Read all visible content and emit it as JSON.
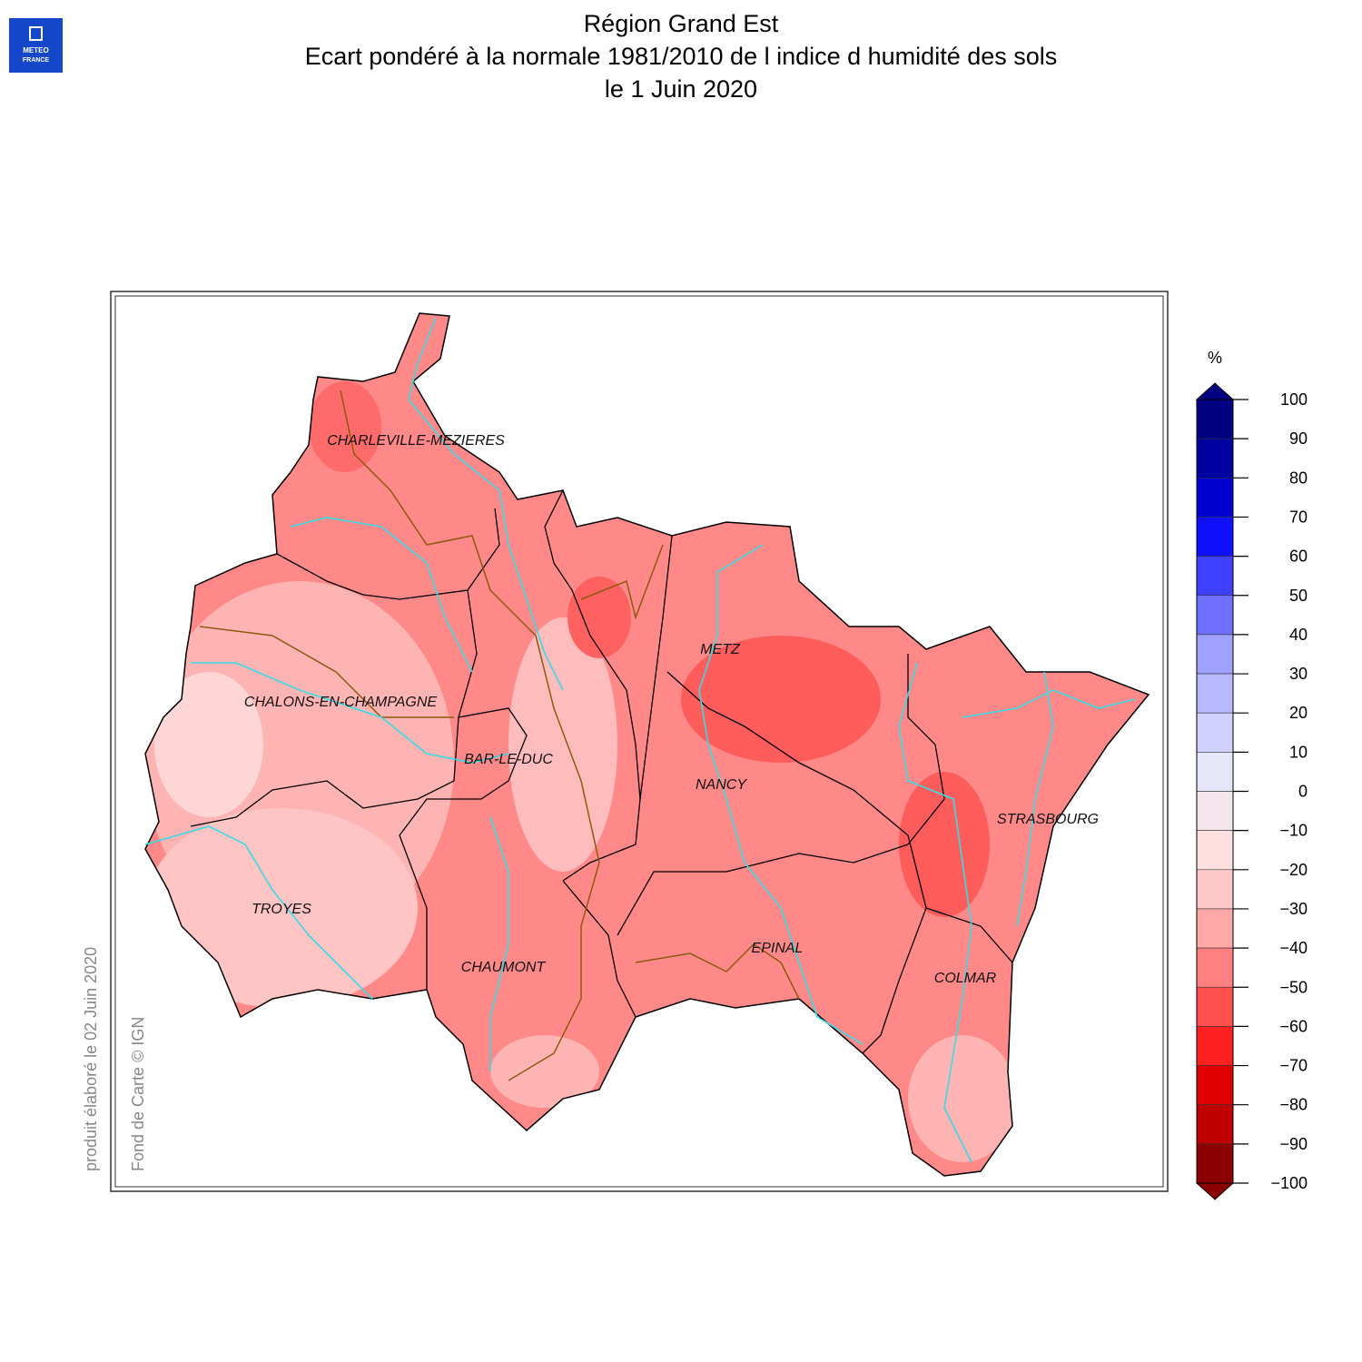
{
  "header": {
    "logo": [
      "METEO",
      "FRANCE"
    ],
    "title": [
      "Région Grand Est",
      "Ecart pondéré à la normale 1981/2010 de l indice d humidité des sols",
      "le 1 Juin 2020"
    ]
  },
  "map": {
    "cities": [
      "CHARLEVILLE-MEZIERES",
      "METZ",
      "CHALONS-EN-CHAMPAGNE",
      "BAR-LE-DUC",
      "NANCY",
      "STRASBOURG",
      "TROYES",
      "EPINAL",
      "CHAUMONT",
      "COLMAR"
    ]
  },
  "legend": {
    "unit": "%",
    "ticks": [
      100,
      90,
      80,
      70,
      60,
      50,
      40,
      30,
      20,
      10,
      0,
      {
        "value": -10,
        "label": "−10"
      },
      {
        "value": -20,
        "label": "−20"
      },
      {
        "value": -30,
        "label": "−30"
      },
      {
        "value": -40,
        "label": "−40"
      },
      {
        "value": -50,
        "label": "−50"
      },
      {
        "value": -60,
        "label": "−60"
      },
      {
        "value": -70,
        "label": "−70"
      },
      {
        "value": -80,
        "label": "−80"
      },
      {
        "value": -90,
        "label": "−90"
      },
      {
        "value": -100,
        "label": "−100"
      }
    ],
    "colors": [
      "#000080",
      "#0000a0",
      "#0000d0",
      "#1010ff",
      "#4040ff",
      "#7070ff",
      "#a0a0ff",
      "#b8b8ff",
      "#d0d0ff",
      "#e6e6fa",
      "#f5e6ee",
      "#ffe0e0",
      "#ffc8c8",
      "#ffa8a8",
      "#ff8080",
      "#ff5050",
      "#ff2020",
      "#e00000",
      "#c00000",
      "#8b0000"
    ]
  },
  "footer": {
    "produced": "produit élaboré le 02 Juin 2020",
    "basemap": "Fond de Carte © IGN"
  }
}
